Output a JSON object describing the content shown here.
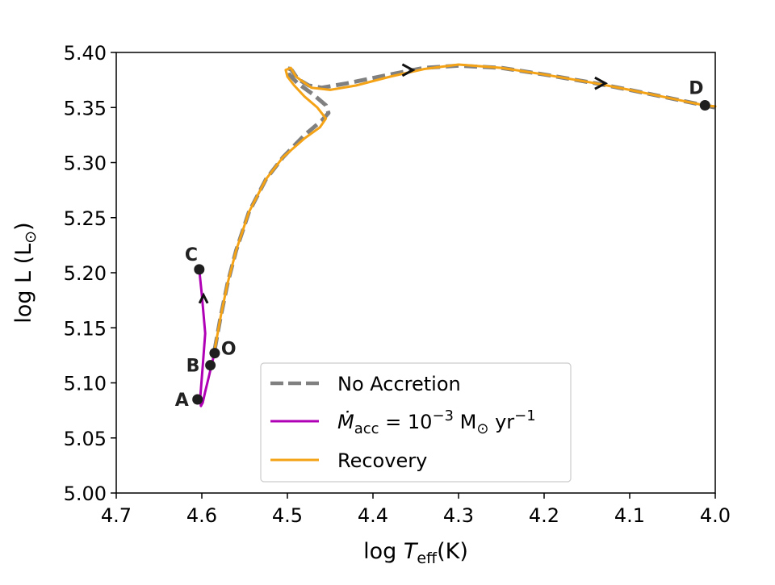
{
  "chart_data": {
    "type": "line",
    "title": "",
    "xlabel": {
      "main": "log ",
      "var": "T",
      "sub": "eff",
      "unit": "(K)"
    },
    "ylabel": {
      "main": "log L (L",
      "sym": "⊙",
      "close": ")"
    },
    "xlim": [
      4.7,
      4.0
    ],
    "ylim": [
      5.0,
      5.4
    ],
    "x_reversed": true,
    "x_ticks": [
      "4.7",
      "4.6",
      "4.5",
      "4.4",
      "4.3",
      "4.2",
      "4.1",
      "4.0"
    ],
    "y_ticks": [
      "5.00",
      "5.05",
      "5.10",
      "5.15",
      "5.20",
      "5.25",
      "5.30",
      "5.35",
      "5.40"
    ],
    "grid": false,
    "legend": {
      "placement": "lower-center",
      "entries": [
        {
          "key": "no_accretion",
          "label": "No Accretion"
        },
        {
          "key": "accretion",
          "label_parts": {
            "var": "Ṁ",
            "sub": "acc",
            "rest": " = 10",
            "exp": "−3",
            "unit": " M",
            "sym": "⊙",
            "tail": " yr",
            "tail_exp": "−1"
          }
        },
        {
          "key": "recovery",
          "label": "Recovery"
        }
      ]
    },
    "colors": {
      "no_accretion": "#808080",
      "accretion": "#b000b5",
      "recovery": "#f5a316",
      "points": "#1f1f1f"
    },
    "series": [
      {
        "key": "no_accretion",
        "style": "dashed",
        "points": [
          [
            4.585,
            5.13
          ],
          [
            4.578,
            5.16
          ],
          [
            4.57,
            5.19
          ],
          [
            4.56,
            5.22
          ],
          [
            4.545,
            5.255
          ],
          [
            4.525,
            5.285
          ],
          [
            4.505,
            5.305
          ],
          [
            4.48,
            5.325
          ],
          [
            4.46,
            5.338
          ],
          [
            4.452,
            5.345
          ],
          [
            4.455,
            5.352
          ],
          [
            4.47,
            5.362
          ],
          [
            4.488,
            5.372
          ],
          [
            4.498,
            5.38
          ],
          [
            4.5,
            5.386
          ],
          [
            4.495,
            5.384
          ],
          [
            4.488,
            5.376
          ],
          [
            4.475,
            5.37
          ],
          [
            4.46,
            5.368
          ],
          [
            4.43,
            5.372
          ],
          [
            4.38,
            5.38
          ],
          [
            4.34,
            5.386
          ],
          [
            4.3,
            5.388
          ],
          [
            4.25,
            5.386
          ],
          [
            4.2,
            5.38
          ],
          [
            4.14,
            5.372
          ],
          [
            4.1,
            5.366
          ],
          [
            4.05,
            5.358
          ],
          [
            4.013,
            5.352
          ],
          [
            4.0,
            5.35
          ]
        ]
      },
      {
        "key": "accretion",
        "style": "solid",
        "points": [
          [
            4.585,
            5.128
          ],
          [
            4.588,
            5.118
          ],
          [
            4.592,
            5.105
          ],
          [
            4.596,
            5.092
          ],
          [
            4.599,
            5.082
          ],
          [
            4.601,
            5.079
          ],
          [
            4.602,
            5.085
          ],
          [
            4.599,
            5.115
          ],
          [
            4.596,
            5.145
          ],
          [
            4.6,
            5.18
          ],
          [
            4.603,
            5.203
          ]
        ]
      },
      {
        "key": "recovery",
        "style": "solid",
        "points": [
          [
            4.585,
            5.13
          ],
          [
            4.578,
            5.16
          ],
          [
            4.57,
            5.19
          ],
          [
            4.56,
            5.22
          ],
          [
            4.545,
            5.255
          ],
          [
            4.525,
            5.285
          ],
          [
            4.505,
            5.305
          ],
          [
            4.48,
            5.322
          ],
          [
            4.462,
            5.332
          ],
          [
            4.455,
            5.34
          ],
          [
            4.465,
            5.35
          ],
          [
            4.48,
            5.36
          ],
          [
            4.492,
            5.37
          ],
          [
            4.5,
            5.378
          ],
          [
            4.502,
            5.384
          ],
          [
            4.496,
            5.386
          ],
          [
            4.49,
            5.378
          ],
          [
            4.472,
            5.368
          ],
          [
            4.45,
            5.366
          ],
          [
            4.42,
            5.37
          ],
          [
            4.38,
            5.378
          ],
          [
            4.34,
            5.385
          ],
          [
            4.3,
            5.389
          ],
          [
            4.25,
            5.386
          ],
          [
            4.2,
            5.38
          ],
          [
            4.14,
            5.372
          ],
          [
            4.1,
            5.366
          ],
          [
            4.05,
            5.358
          ],
          [
            4.013,
            5.352
          ],
          [
            4.0,
            5.351
          ]
        ]
      }
    ],
    "direction_markers": [
      {
        "series": "no_accretion",
        "x": 4.36,
        "y": 5.384,
        "glyph": ">"
      },
      {
        "series": "no_accretion",
        "x": 4.135,
        "y": 5.372,
        "glyph": ">"
      },
      {
        "series": "accretion",
        "x": 4.598,
        "y": 5.176,
        "glyph": "^"
      }
    ],
    "labeled_points": [
      {
        "label": "A",
        "x": 4.605,
        "y": 5.085
      },
      {
        "label": "B",
        "x": 4.59,
        "y": 5.116
      },
      {
        "label": "O",
        "x": 4.585,
        "y": 5.127
      },
      {
        "label": "C",
        "x": 4.603,
        "y": 5.203
      },
      {
        "label": "D",
        "x": 4.012,
        "y": 5.352
      }
    ]
  }
}
